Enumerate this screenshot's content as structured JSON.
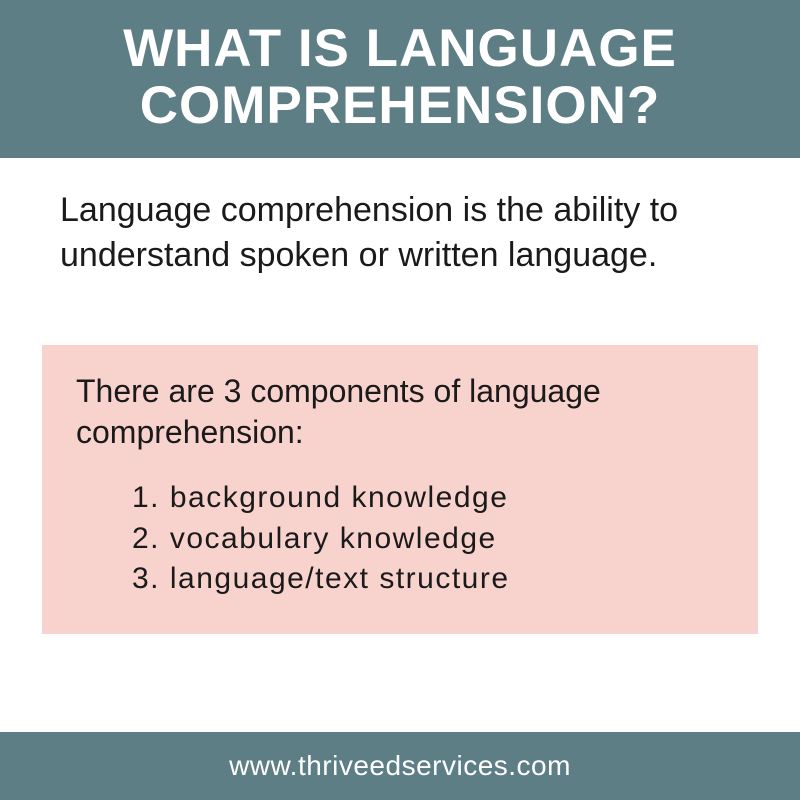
{
  "colors": {
    "header_bg": "#5e7e85",
    "header_text": "#ffffff",
    "body_bg": "#ffffff",
    "body_text": "#1a1a1a",
    "box_bg": "#f8d3cd",
    "footer_bg": "#5e7e85",
    "footer_text": "#ffffff"
  },
  "typography": {
    "title_fontsize": 53,
    "title_weight": 800,
    "definition_fontsize": 34,
    "intro_fontsize": 32,
    "list_fontsize": 30,
    "footer_fontsize": 28
  },
  "header": {
    "title": "WHAT IS LANGUAGE COMPREHENSION?"
  },
  "content": {
    "definition": "Language comprehension is the ability to understand spoken or written language.",
    "components_intro": "There are 3 components of language comprehension:",
    "components": [
      "1. background knowledge",
      "2. vocabulary knowledge",
      "3. language/text structure"
    ]
  },
  "footer": {
    "url": "www.thriveedservices.com"
  }
}
